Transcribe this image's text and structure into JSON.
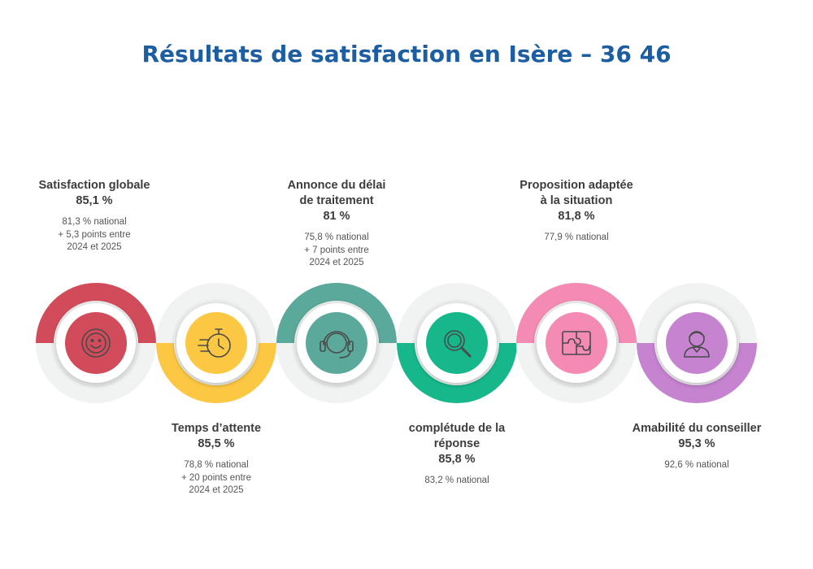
{
  "title": "Résultats de satisfaction en Isère – 36 46",
  "items": [
    {
      "label_lines": [
        "Satisfaction globale"
      ],
      "value": "85,1 %",
      "national_lines": [
        "81,3 % national",
        "+ 5,3 points entre",
        "2024 et 2025"
      ],
      "color": "#d24b5a",
      "icon": "smiley-icon"
    },
    {
      "label_lines": [
        "Temps d’attente"
      ],
      "value": "85,5 %",
      "national_lines": [
        "78,8 % national",
        "+ 20 points entre",
        "2024 et 2025"
      ],
      "color": "#fcc843",
      "icon": "stopwatch-icon"
    },
    {
      "label_lines": [
        "Annonce du délai",
        "de traitement"
      ],
      "value": "81 %",
      "national_lines": [
        "75,8 % national",
        "+ 7 points entre",
        "2024 et 2025"
      ],
      "color": "#5aa99a",
      "icon": "headset-icon"
    },
    {
      "label_lines": [
        "complétude de la",
        "réponse"
      ],
      "value": "85,8 %",
      "national_lines": [
        "83,2 % national"
      ],
      "color": "#16b88b",
      "icon": "magnifier-icon"
    },
    {
      "label_lines": [
        "Proposition adaptée",
        "à la situation"
      ],
      "value": "81,8 %",
      "national_lines": [
        "77,9 % national"
      ],
      "color": "#f48bb4",
      "icon": "puzzle-icon"
    },
    {
      "label_lines": [
        "Amabilité du conseiller"
      ],
      "value": "95,3 %",
      "national_lines": [
        "92,6 % national"
      ],
      "color": "#c583d0",
      "icon": "advisor-icon"
    }
  ]
}
